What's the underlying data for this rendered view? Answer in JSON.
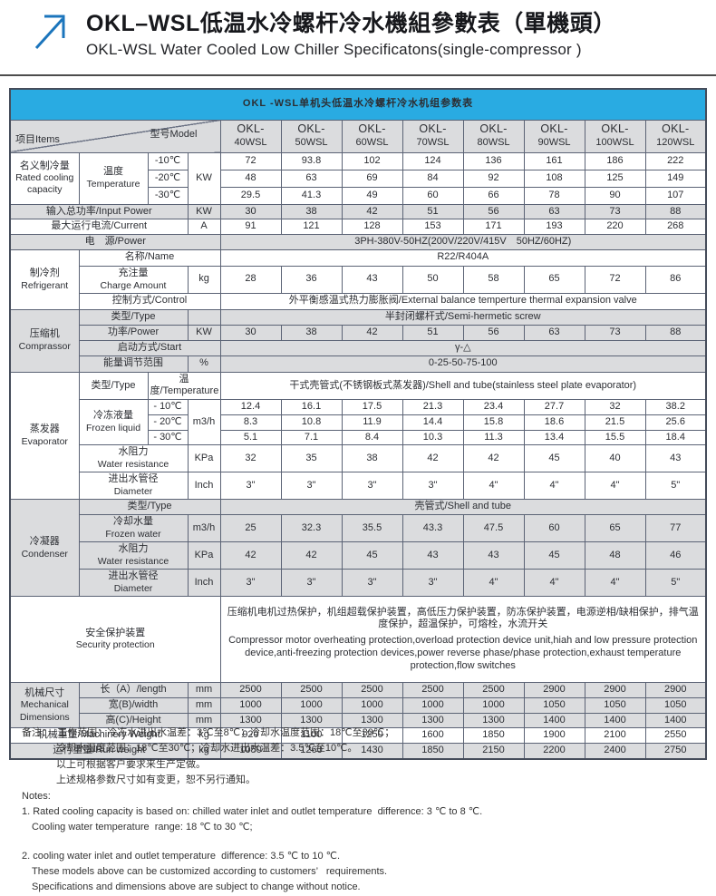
{
  "header": {
    "title_zh": "OKL–WSL低温水冷螺杆冷水機組參數表（單機頭）",
    "title_en": "OKL-WSL Water Cooled Low Chiller Specificatons(single-compressor )"
  },
  "colors": {
    "accent_blue": "#29abe2",
    "row_gray": "#dbdcde",
    "arrow_blue": "#1b75bc"
  },
  "table": {
    "banner": "OKL -WSL单机头低温水冷螺杆冷水机组参数表",
    "corner_items": "项目Items",
    "corner_model": "型号Model",
    "models": [
      {
        "l1": "OKL-",
        "l2": "40WSL"
      },
      {
        "l1": "OKL-",
        "l2": "50WSL"
      },
      {
        "l1": "OKL-",
        "l2": "60WSL"
      },
      {
        "l1": "OKL-",
        "l2": "70WSL"
      },
      {
        "l1": "OKL-",
        "l2": "80WSL"
      },
      {
        "l1": "OKL-",
        "l2": "90WSL"
      },
      {
        "l1": "OKL-",
        "l2": "100WSL"
      },
      {
        "l1": "OKL-",
        "l2": "120WSL"
      }
    ],
    "capacity": {
      "label_zh": "名义制冷量",
      "label_en": "Rated cooling capacity",
      "sub_zh": "温度",
      "sub_en": "Temperature",
      "unit": "KW",
      "rows": [
        {
          "temp": "-10℃",
          "values": [
            "72",
            "93.8",
            "102",
            "124",
            "136",
            "161",
            "186",
            "222"
          ]
        },
        {
          "temp": "-20℃",
          "values": [
            "48",
            "63",
            "69",
            "84",
            "92",
            "108",
            "125",
            "149"
          ]
        },
        {
          "temp": "-30℃",
          "values": [
            "29.5",
            "41.3",
            "49",
            "60",
            "66",
            "78",
            "90",
            "107"
          ]
        }
      ]
    },
    "input_power": {
      "label": "输入总功率/Input Power",
      "unit": "KW",
      "values": [
        "30",
        "38",
        "42",
        "51",
        "56",
        "63",
        "73",
        "88"
      ]
    },
    "current": {
      "label": "最大运行电流/Current",
      "unit": "A",
      "values": [
        "91",
        "121",
        "128",
        "153",
        "171",
        "193",
        "220",
        "268"
      ]
    },
    "power_supply": {
      "label": "电　源/Power",
      "value": "3PH-380V-50HZ(200V/220V/415V　50HZ/60HZ)"
    },
    "refrigerant": {
      "label_zh": "制冷剂",
      "label_en": "Refrigerant",
      "name_label": "名称/Name",
      "name_value": "R22/R404A",
      "charge_label_zh": "充注量",
      "charge_label_en": "Charge Amount",
      "charge_unit": "kg",
      "charge_values": [
        "28",
        "36",
        "43",
        "50",
        "58",
        "65",
        "72",
        "86"
      ],
      "control_label": "控制方式/Control",
      "control_value": "外平衡感温式热力膨胀阀/External balance temperture thermal expansion valve"
    },
    "compressor": {
      "label_zh": "压缩机",
      "label_en": "Comprassor",
      "type_label": "类型/Type",
      "type_value": "半封闭螺杆式/Semi-hermetic screw",
      "power_label": "功率/Power",
      "power_unit": "KW",
      "power_values": [
        "30",
        "38",
        "42",
        "51",
        "56",
        "63",
        "73",
        "88"
      ],
      "start_label": "启动方式/Start",
      "start_value": "γ-△",
      "energy_label": "能量调节范围",
      "energy_unit": "%",
      "energy_value": "0-25-50-75-100"
    },
    "evaporator": {
      "label_zh": "蒸发器",
      "label_en": "Evaporator",
      "type_label": "类型/Type",
      "temp_label": "温度/Temperature",
      "type_value": "干式壳管式(不锈钢板式蒸发器)/Shell and tube(stainless steel plate evaporator)",
      "frozen_label_zh": "冷冻液量",
      "frozen_label_en": "Frozen liquid",
      "frozen_unit": "m3/h",
      "frozen_rows": [
        {
          "temp": "- 10℃",
          "values": [
            "12.4",
            "16.1",
            "17.5",
            "21.3",
            "23.4",
            "27.7",
            "32",
            "38.2"
          ]
        },
        {
          "temp": "- 20℃",
          "values": [
            "8.3",
            "10.8",
            "11.9",
            "14.4",
            "15.8",
            "18.6",
            "21.5",
            "25.6"
          ]
        },
        {
          "temp": "- 30℃",
          "values": [
            "5.1",
            "7.1",
            "8.4",
            "10.3",
            "11.3",
            "13.4",
            "15.5",
            "18.4"
          ]
        }
      ],
      "resist_label_zh": "水阻力",
      "resist_label_en": "Water resistance",
      "resist_unit": "KPa",
      "resist_values": [
        "32",
        "35",
        "38",
        "42",
        "42",
        "45",
        "40",
        "43"
      ],
      "diam_label_zh": "进出水管径",
      "diam_label_en": "Diameter",
      "diam_unit": "Inch",
      "diam_values": [
        "3\"",
        "3\"",
        "3\"",
        "3\"",
        "4\"",
        "4\"",
        "4\"",
        "5\""
      ]
    },
    "condenser": {
      "label_zh": "冷凝器",
      "label_en": "Condenser",
      "type_label": "类型/Type",
      "type_value": "壳管式/Shell and tube",
      "water_label_zh": "冷却水量",
      "water_label_en": "Frozen water",
      "water_unit": "m3/h",
      "water_values": [
        "25",
        "32.3",
        "35.5",
        "43.3",
        "47.5",
        "60",
        "65",
        "77"
      ],
      "resist_label_zh": "水阻力",
      "resist_label_en": "Water resistance",
      "resist_unit": "KPa",
      "resist_values": [
        "42",
        "42",
        "45",
        "43",
        "43",
        "45",
        "48",
        "46"
      ],
      "diam_label_zh": "进出水管径",
      "diam_label_en": "Diameter",
      "diam_unit": "Inch",
      "diam_values": [
        "3\"",
        "3\"",
        "3\"",
        "3\"",
        "4\"",
        "4\"",
        "4\"",
        "5\""
      ]
    },
    "security": {
      "label_zh": "安全保护装置",
      "label_en": "Security protection",
      "text_zh": "压缩机电机过热保护，机组超载保护装置，高低压力保护装置，防冻保护装置，电源逆相/缺相保护，排气温度保护，超温保护，可熔栓，水流开关",
      "text_en": "Compressor motor overheating protection,overload protection device unit,hiah and low pressure protection device,anti-freezing protection devices,power reverse phase/phase protection,exhaust temperature protection,flow switches"
    },
    "mechanical": {
      "label_zh": "机械尺寸",
      "label_en1": "Mechanical",
      "label_en2": "Dimensions",
      "rows": [
        {
          "label": "长（A）/length",
          "unit": "mm",
          "values": [
            "2500",
            "2500",
            "2500",
            "2500",
            "2500",
            "2900",
            "2900",
            "2900"
          ]
        },
        {
          "label": "宽(B)/width",
          "unit": "mm",
          "values": [
            "1000",
            "1000",
            "1000",
            "1000",
            "1000",
            "1050",
            "1050",
            "1050"
          ]
        },
        {
          "label": "高(C)/Height",
          "unit": "mm",
          "values": [
            "1300",
            "1300",
            "1300",
            "1300",
            "1300",
            "1400",
            "1400",
            "1400"
          ]
        }
      ]
    },
    "machinery_weight": {
      "label": "机械重量/Machinery Weight",
      "unit": "kg",
      "values": [
        "920",
        "1100",
        "1250",
        "1600",
        "1850",
        "1900",
        "2100",
        "2550"
      ]
    },
    "run_weight": {
      "label": "运行重量/Run weight",
      "unit": "kg",
      "values": [
        "1050",
        "1260",
        "1430",
        "1850",
        "2150",
        "2200",
        "2400",
        "2750"
      ]
    }
  },
  "notes": {
    "zh": [
      "备注：  工作范围：冷冻水进出水温差：3℃至8℃；冷却水温度范围：18℃至30℃；",
      "冷却水温度范围：18℃至30℃；冷却水进出水温差：3.5℃至10℃。",
      "以上可根据客户要求来生产定做。",
      "上述规格参数尺寸如有变更，恕不另行通知。"
    ],
    "en_title": "Notes:",
    "en": [
      "1. Rated cooling capacity is based on: chilled water inlet and outlet temperature  difference: 3 ℃ to 8 ℃.",
      "Cooling water temperature  range: 18 ℃ to 30 ℃;",
      "2. cooling water inlet and outlet temperature  difference: 3.5 ℃ to 10 ℃.",
      "These models above can be customized according to customers’   requirements.",
      "Specifications and dimensions above are subject to change without notice."
    ]
  }
}
